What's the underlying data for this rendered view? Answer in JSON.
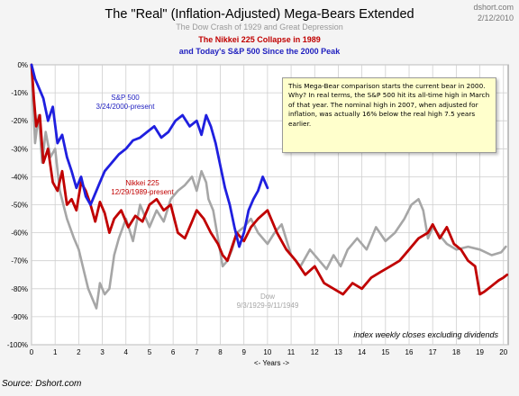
{
  "header": {
    "site": "dshort.com",
    "date": "2/12/2010",
    "source": "Source: Dshort.com"
  },
  "chart_data": {
    "type": "line",
    "title": "The \"Real\" (Inflation-Adjusted) Mega-Bears Extended",
    "subtitle_lines": [
      {
        "text": "The Dow Crash of 1929 and Great Depression",
        "color": "#999999"
      },
      {
        "text": "The Nikkei 225 Collapse in 1989",
        "color": "#c00000"
      },
      {
        "text": "and Today's S&P 500 Since the 2000 Peak",
        "color": "#1f1fbf"
      }
    ],
    "xlabel": "<- Years ->",
    "ylabel": "",
    "xlim": [
      0,
      20.2
    ],
    "ylim": [
      -100,
      0
    ],
    "xticks": [
      0,
      1,
      2,
      3,
      4,
      5,
      6,
      7,
      8,
      9,
      10,
      11,
      12,
      13,
      14,
      15,
      16,
      17,
      18,
      19,
      20
    ],
    "yticks": [
      0,
      -10,
      -20,
      -30,
      -40,
      -50,
      -60,
      -70,
      -80,
      -90,
      -100
    ],
    "ytick_suffix": "%",
    "grid": true,
    "annotation_box": "This Mega-Bear comparison starts the current bear in 2000. Why? In real terms, the S&P 500 hit its all-time high in March of that year. The nominal high in 2007, when adjusted for inflation, was actually 16% below the real high 7.5 years earlier.",
    "footnote": "index weekly closes excluding dividends",
    "series": [
      {
        "name": "Dow",
        "label_lines": [
          "Dow",
          "9/3/1929-9/11/1949"
        ],
        "color": "#a6a6a6",
        "x": [
          0,
          0.15,
          0.3,
          0.45,
          0.6,
          0.8,
          1.0,
          1.2,
          1.5,
          1.8,
          2.0,
          2.2,
          2.4,
          2.6,
          2.75,
          2.9,
          3.1,
          3.3,
          3.5,
          3.7,
          4.0,
          4.3,
          4.6,
          5.0,
          5.3,
          5.6,
          5.9,
          6.2,
          6.5,
          6.8,
          7.0,
          7.2,
          7.4,
          7.5,
          7.7,
          7.9,
          8.1,
          8.3,
          8.5,
          8.7,
          9.0,
          9.3,
          9.6,
          10.0,
          10.3,
          10.6,
          11.0,
          11.4,
          11.8,
          12.2,
          12.5,
          12.8,
          13.1,
          13.4,
          13.8,
          14.2,
          14.6,
          15.0,
          15.4,
          15.8,
          16.1,
          16.4,
          16.6,
          16.8,
          17.0,
          17.3,
          17.6,
          18.0,
          18.5,
          19.0,
          19.5,
          19.9,
          20.1
        ],
        "y": [
          0,
          -28,
          -18,
          -35,
          -24,
          -33,
          -30,
          -45,
          -55,
          -62,
          -66,
          -73,
          -80,
          -84,
          -87,
          -78,
          -82,
          -80,
          -68,
          -62,
          -55,
          -63,
          -50,
          -58,
          -52,
          -56,
          -48,
          -45,
          -43,
          -40,
          -45,
          -38,
          -42,
          -48,
          -52,
          -62,
          -72,
          -70,
          -66,
          -60,
          -58,
          -55,
          -60,
          -64,
          -60,
          -57,
          -68,
          -72,
          -66,
          -70,
          -73,
          -68,
          -72,
          -66,
          -62,
          -66,
          -58,
          -63,
          -60,
          -55,
          -50,
          -48,
          -52,
          -62,
          -58,
          -61,
          -64,
          -66,
          -65,
          -66,
          -68,
          -67,
          -65
        ]
      },
      {
        "name": "Nikkei 225",
        "label_lines": [
          "Nikkei 225",
          "12/29/1989-present"
        ],
        "color": "#c00000",
        "x": [
          0,
          0.1,
          0.2,
          0.35,
          0.5,
          0.7,
          0.9,
          1.1,
          1.3,
          1.5,
          1.7,
          1.9,
          2.1,
          2.3,
          2.5,
          2.7,
          2.9,
          3.1,
          3.3,
          3.5,
          3.8,
          4.1,
          4.4,
          4.7,
          5.0,
          5.3,
          5.6,
          5.9,
          6.2,
          6.5,
          6.8,
          7.0,
          7.3,
          7.6,
          7.9,
          8.1,
          8.3,
          8.5,
          8.7,
          9.0,
          9.3,
          9.6,
          10.0,
          10.4,
          10.8,
          11.2,
          11.6,
          12.0,
          12.4,
          12.8,
          13.2,
          13.6,
          14.0,
          14.4,
          14.8,
          15.2,
          15.6,
          16.0,
          16.4,
          16.8,
          17.0,
          17.3,
          17.6,
          17.9,
          18.2,
          18.5,
          18.8,
          19.0,
          19.2,
          19.5,
          19.8,
          20.0,
          20.15
        ],
        "y": [
          0,
          -12,
          -22,
          -18,
          -35,
          -30,
          -42,
          -45,
          -38,
          -50,
          -48,
          -52,
          -42,
          -45,
          -50,
          -56,
          -49,
          -53,
          -60,
          -55,
          -52,
          -58,
          -54,
          -56,
          -50,
          -48,
          -52,
          -50,
          -60,
          -62,
          -56,
          -52,
          -55,
          -60,
          -64,
          -68,
          -70,
          -65,
          -60,
          -63,
          -58,
          -55,
          -52,
          -60,
          -66,
          -70,
          -75,
          -72,
          -78,
          -80,
          -82,
          -78,
          -80,
          -76,
          -74,
          -72,
          -70,
          -66,
          -62,
          -60,
          -57,
          -62,
          -58,
          -64,
          -66,
          -70,
          -72,
          -82,
          -81,
          -79,
          -77,
          -76,
          -75
        ]
      },
      {
        "name": "S&P 500",
        "label_lines": [
          "S&P 500",
          "3/24/2000-present"
        ],
        "color": "#1f1fdf",
        "x": [
          0,
          0.15,
          0.3,
          0.5,
          0.7,
          0.9,
          1.1,
          1.3,
          1.5,
          1.7,
          1.9,
          2.1,
          2.3,
          2.5,
          2.7,
          2.9,
          3.1,
          3.3,
          3.5,
          3.7,
          4.0,
          4.3,
          4.6,
          4.9,
          5.2,
          5.5,
          5.8,
          6.1,
          6.4,
          6.7,
          7.0,
          7.2,
          7.4,
          7.6,
          7.8,
          8.0,
          8.2,
          8.4,
          8.6,
          8.8,
          9.0,
          9.2,
          9.4,
          9.6,
          9.8,
          10.0
        ],
        "y": [
          0,
          -5,
          -8,
          -12,
          -20,
          -15,
          -28,
          -25,
          -33,
          -38,
          -44,
          -40,
          -47,
          -50,
          -46,
          -42,
          -38,
          -36,
          -34,
          -32,
          -30,
          -27,
          -26,
          -24,
          -22,
          -26,
          -24,
          -20,
          -18,
          -22,
          -20,
          -25,
          -18,
          -22,
          -28,
          -36,
          -44,
          -50,
          -58,
          -65,
          -60,
          -52,
          -48,
          -45,
          -40,
          -44
        ]
      }
    ]
  }
}
